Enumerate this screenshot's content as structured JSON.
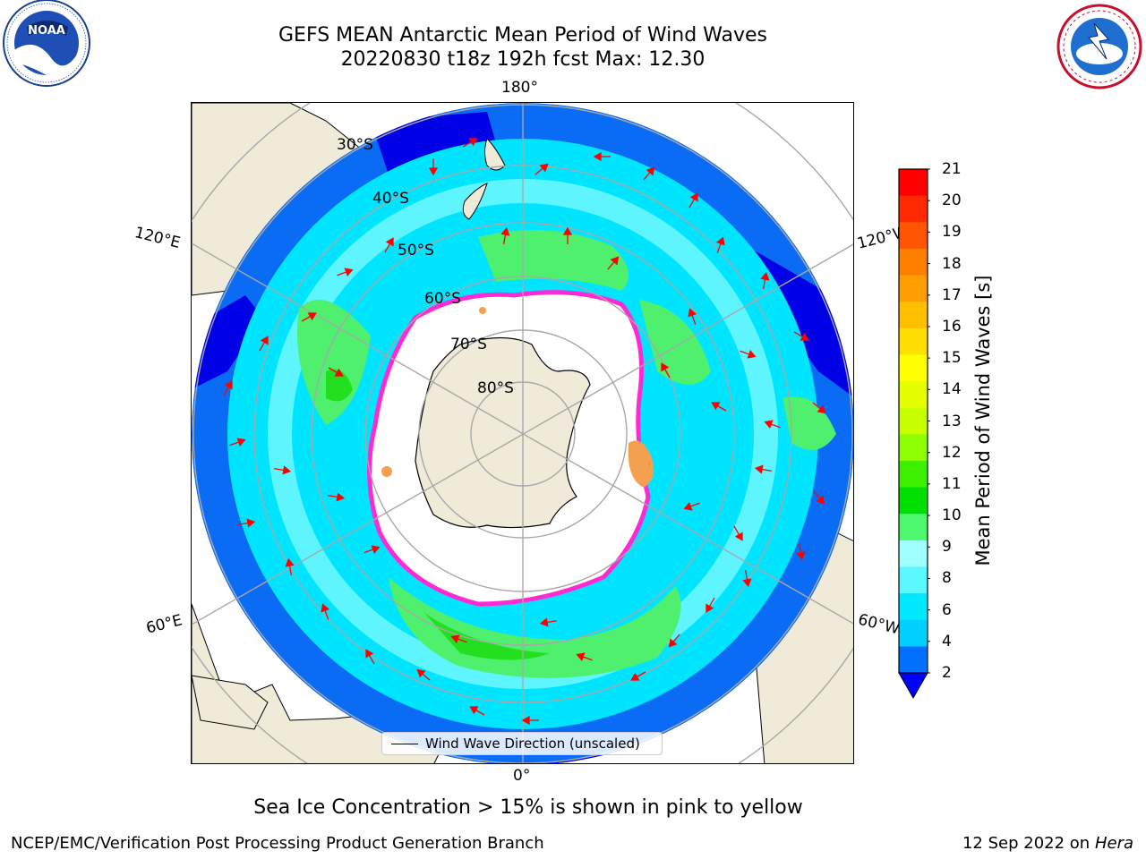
{
  "title": {
    "line1": "GEFS MEAN Antarctic Mean Period of Wind Waves",
    "line2": "20220830 t18z 192h fcst   Max: 12.30"
  },
  "logos": {
    "left": "noaa-logo",
    "right": "national-weather-service-logo"
  },
  "map": {
    "projection": "south-polar-stereographic",
    "longitude_labels": {
      "top": "180°",
      "bottom": "0°",
      "upper_left": "120°E",
      "upper_right": "120°W",
      "lower_left": "60°E",
      "lower_right": "60°W"
    },
    "latitude_labels": [
      "30°S",
      "40°S",
      "50°S",
      "60°S",
      "70°S",
      "80°S"
    ],
    "legend": "Wind Wave Direction (unscaled)",
    "colors": {
      "land": "#efebd8",
      "ocean_deep_blue": "#0000e6",
      "blue": "#0a6cf5",
      "cyan": "#00e5ff",
      "light_cyan": "#5ff5ff",
      "green": "#4ef06e",
      "bright_green": "#22e020",
      "sea_ice_pink": "#ff2ad4",
      "sea_ice_orange": "#f5a050",
      "arrow": "#ff0000"
    }
  },
  "colorbar": {
    "label": "Mean Period of Wind Waves [s]",
    "ticks": [
      "21",
      "20",
      "19",
      "18",
      "17",
      "16",
      "15",
      "14",
      "13",
      "12",
      "11",
      "10",
      "9",
      "8",
      "6",
      "4",
      "2"
    ],
    "colors_top_to_bottom": [
      "#ff0000",
      "#ff2a00",
      "#ff5400",
      "#ff7f00",
      "#ff9e00",
      "#ffbe00",
      "#ffde00",
      "#ffff00",
      "#e6ff00",
      "#c8ff00",
      "#8cff00",
      "#3cf000",
      "#00e000",
      "#4cf86c",
      "#a0ffff",
      "#5af8ff",
      "#00e8ff",
      "#00d0ff",
      "#0070ff"
    ],
    "extend_color": "#0000ff"
  },
  "footnote": "Sea Ice Concentration > 15% is shown in pink to yellow",
  "credit": "NCEP/EMC/Verification Post Processing Product Generation Branch",
  "date": "12 Sep 2022 on",
  "machine": "Hera"
}
